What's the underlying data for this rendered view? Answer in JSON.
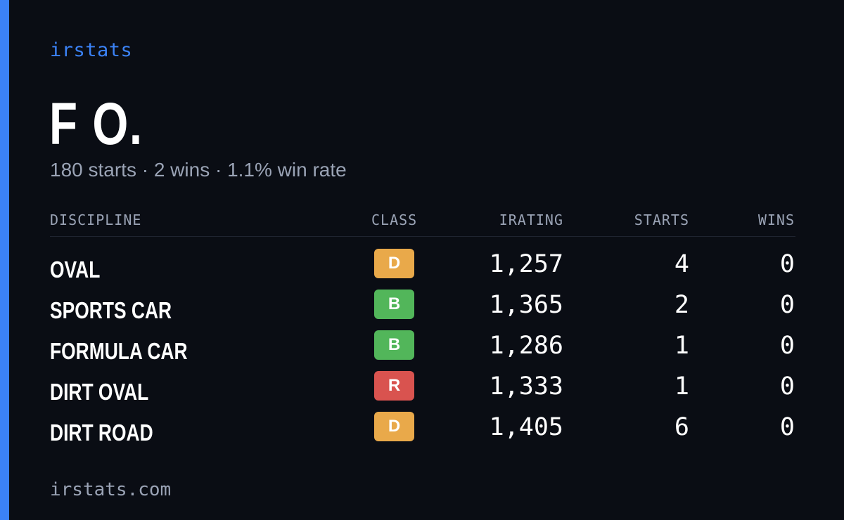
{
  "brand": "irstats",
  "player_name": "F O.",
  "summary": "180 starts · 2 wins · 1.1% win rate",
  "table": {
    "headers": {
      "discipline": "DISCIPLINE",
      "class": "CLASS",
      "irating": "IRATING",
      "starts": "STARTS",
      "wins": "WINS"
    },
    "rows": [
      {
        "discipline": "OVAL",
        "class": "D",
        "class_color": "#e9a94a",
        "irating": "1,257",
        "starts": "4",
        "wins": "0"
      },
      {
        "discipline": "SPORTS CAR",
        "class": "B",
        "class_color": "#52b65a",
        "irating": "1,365",
        "starts": "2",
        "wins": "0"
      },
      {
        "discipline": "FORMULA CAR",
        "class": "B",
        "class_color": "#52b65a",
        "irating": "1,286",
        "starts": "1",
        "wins": "0"
      },
      {
        "discipline": "DIRT OVAL",
        "class": "R",
        "class_color": "#d9534f",
        "irating": "1,333",
        "starts": "1",
        "wins": "0"
      },
      {
        "discipline": "DIRT ROAD",
        "class": "D",
        "class_color": "#e9a94a",
        "irating": "1,405",
        "starts": "6",
        "wins": "0"
      }
    ]
  },
  "footer": "irstats.com",
  "colors": {
    "accent": "#3b82f6",
    "background": "#0a0d14",
    "muted_text": "#9aa3b5"
  }
}
